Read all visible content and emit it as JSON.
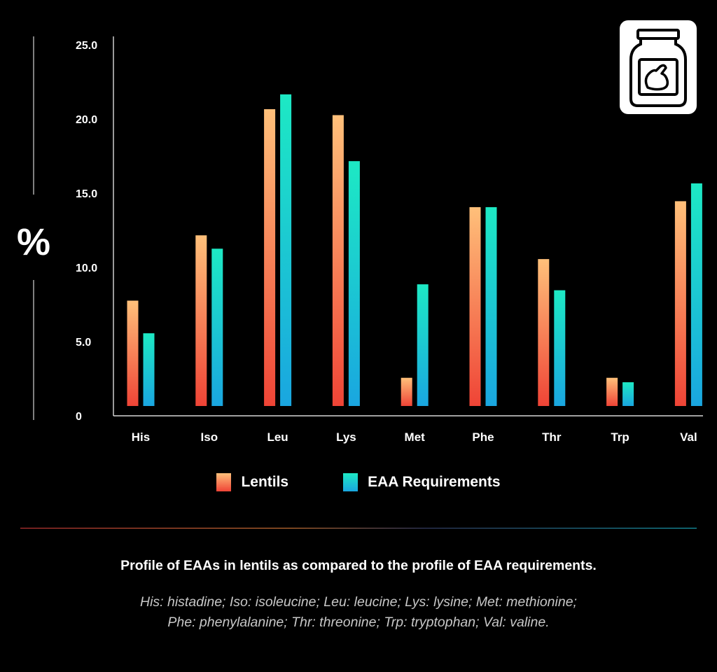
{
  "chart_data": {
    "type": "bar",
    "ylabel": "%",
    "ylim": [
      0,
      25
    ],
    "yticks": [
      "0",
      "5.0",
      "10.0",
      "15.0",
      "20.0",
      "25.0"
    ],
    "categories": [
      "His",
      "Iso",
      "Leu",
      "Lys",
      "Met",
      "Phe",
      "Thr",
      "Trp",
      "Val"
    ],
    "series": [
      {
        "name": "Lentils",
        "values": [
          7.1,
          11.5,
          20.0,
          19.6,
          1.9,
          13.4,
          9.9,
          1.9,
          13.8
        ]
      },
      {
        "name": "EAA Requirements",
        "values": [
          4.9,
          10.6,
          21.0,
          16.5,
          8.2,
          13.4,
          7.8,
          1.6,
          15.0
        ]
      }
    ],
    "legend_position": "bottom",
    "grid": false
  },
  "caption": "Profile of EAAs in lentils as compared to the profile of EAA requirements.",
  "abbreviations": {
    "line1": "His: histadine; Iso: isoleucine; Leu: leucine; Lys: lysine; Met: methionine;",
    "line2": "Phe: phenylalanine; Thr: threonine; Trp: tryptophan; Val: valine."
  },
  "icon": "protein-supplement-jar-icon",
  "colors": {
    "background": "#000000",
    "lentils_top": "#ffc07a",
    "lentils_bottom": "#ef4436",
    "eaa_top": "#1de9c4",
    "eaa_bottom": "#1aa6e0"
  }
}
